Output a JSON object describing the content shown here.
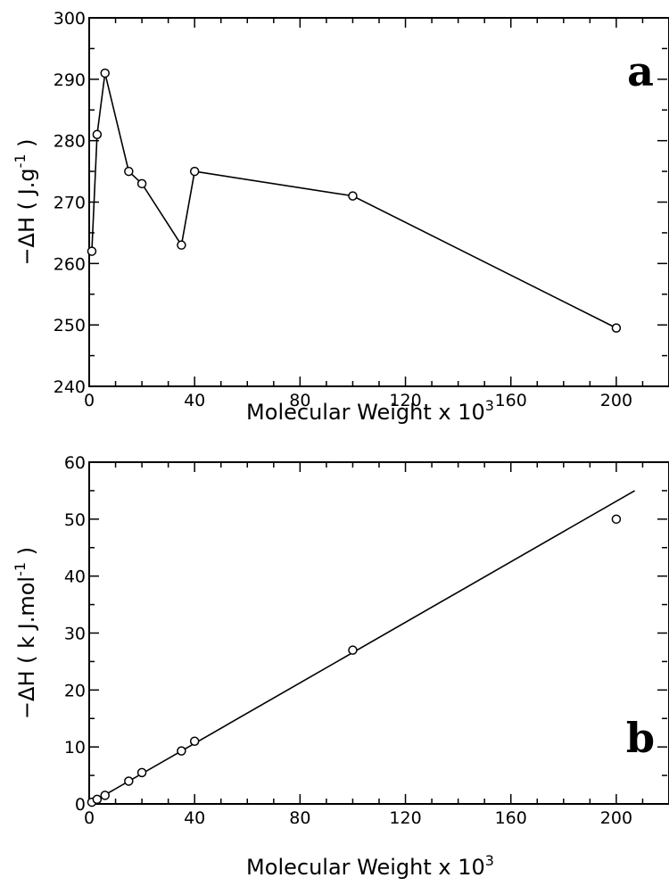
{
  "chart_data": [
    {
      "type": "line",
      "panel": "a",
      "xlabel": "Molecular  Weight x 10",
      "xlabel_sup": "3",
      "ylabel": "−ΔH ( J.g",
      "ylabel_sup": "-1",
      "ylabel_end": ")",
      "xlim": [
        0,
        220
      ],
      "ylim": [
        240,
        300
      ],
      "x_ticks": [
        0,
        40,
        80,
        120,
        160,
        200
      ],
      "x_tick_labels": [
        "0",
        "40",
        "80",
        "120",
        "160",
        "200"
      ],
      "y_ticks": [
        240,
        250,
        260,
        270,
        280,
        290,
        300
      ],
      "y_tick_labels": [
        "240",
        "250",
        "260",
        "270",
        "280",
        "290",
        "300"
      ],
      "series": [
        {
          "style": "line-with-markers",
          "x": [
            1,
            3,
            6,
            15,
            20,
            35,
            40,
            100,
            200
          ],
          "y": [
            262,
            281,
            291,
            275,
            273,
            263,
            275,
            271,
            249.5
          ]
        }
      ]
    },
    {
      "type": "scatter",
      "panel": "b",
      "xlabel": "Molecular  Weight x 10",
      "xlabel_sup": "3",
      "ylabel": "−ΔH ( k J.mol",
      "ylabel_sup": "-1",
      "ylabel_end": ")",
      "xlim": [
        0,
        220
      ],
      "ylim": [
        0,
        60
      ],
      "x_ticks": [
        0,
        40,
        80,
        120,
        160,
        200
      ],
      "x_tick_labels": [
        "0",
        "40",
        "80",
        "120",
        "160",
        "200"
      ],
      "y_ticks": [
        0,
        10,
        20,
        30,
        40,
        50,
        60
      ],
      "y_tick_labels": [
        "0",
        "10",
        "20",
        "30",
        "40",
        "50",
        "60"
      ],
      "series": [
        {
          "style": "markers",
          "x": [
            1,
            3,
            6,
            15,
            20,
            35,
            40,
            100,
            200
          ],
          "y": [
            0.3,
            0.8,
            1.5,
            4,
            5.5,
            9.3,
            11,
            27,
            50
          ]
        }
      ],
      "fit_line": {
        "x": [
          0,
          207
        ],
        "y": [
          0,
          55
        ]
      }
    }
  ]
}
